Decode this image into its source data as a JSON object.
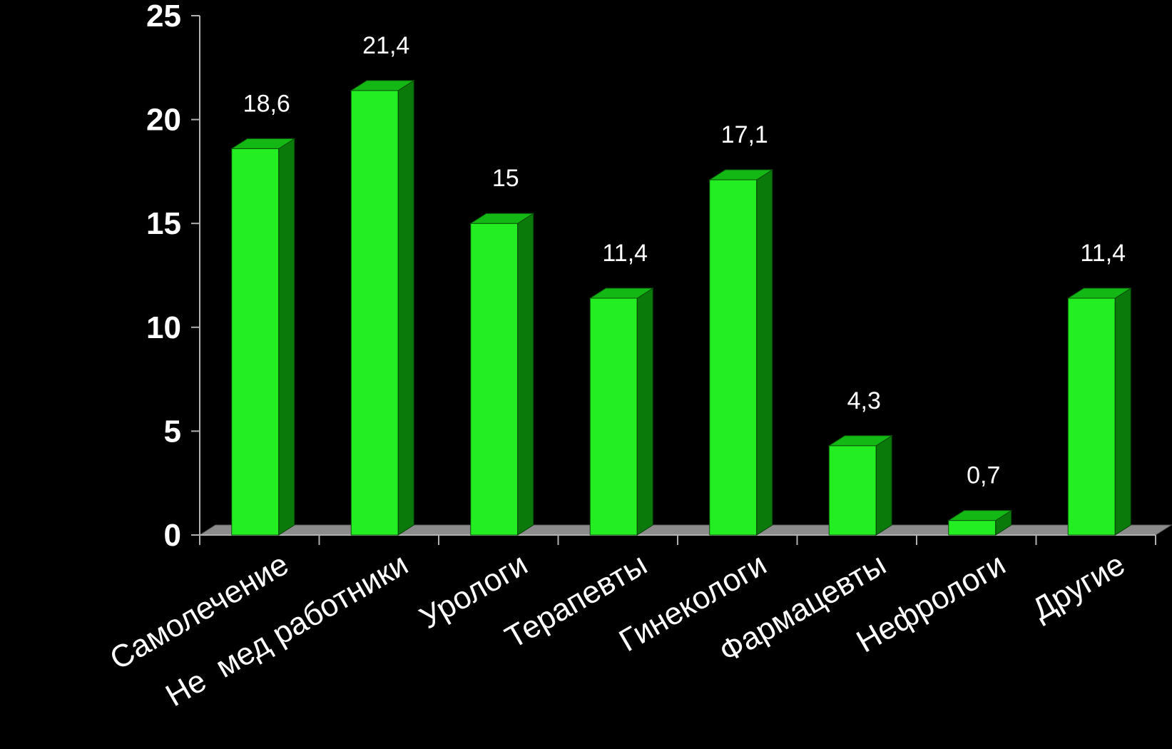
{
  "chart_data": {
    "type": "bar",
    "categories": [
      "Самолечение",
      "Не  мед работники",
      "Урологи",
      "Терапевты",
      "Гинекологи",
      "Фармацевты",
      "Нефрологи",
      "Другие"
    ],
    "values": [
      18.6,
      21.4,
      15,
      11.4,
      17.1,
      4.3,
      0.7,
      11.4
    ],
    "data_labels": [
      "18,6",
      "21,4",
      "15",
      "11,4",
      "17,1",
      "4,3",
      "0,7",
      "11,4"
    ],
    "yticks": [
      "0",
      "5",
      "10",
      "15",
      "20",
      "25"
    ],
    "ylim": [
      0,
      25
    ],
    "three_d": true,
    "grid": false,
    "legend": "none",
    "colors": {
      "background": "#000000",
      "bar_front": "#22ee22",
      "bar_side": "#0a7a0a",
      "bar_top": "#14b814",
      "floor": "#8c8c8c",
      "text": "#ffffff",
      "axis": "#b0b0b0"
    }
  }
}
